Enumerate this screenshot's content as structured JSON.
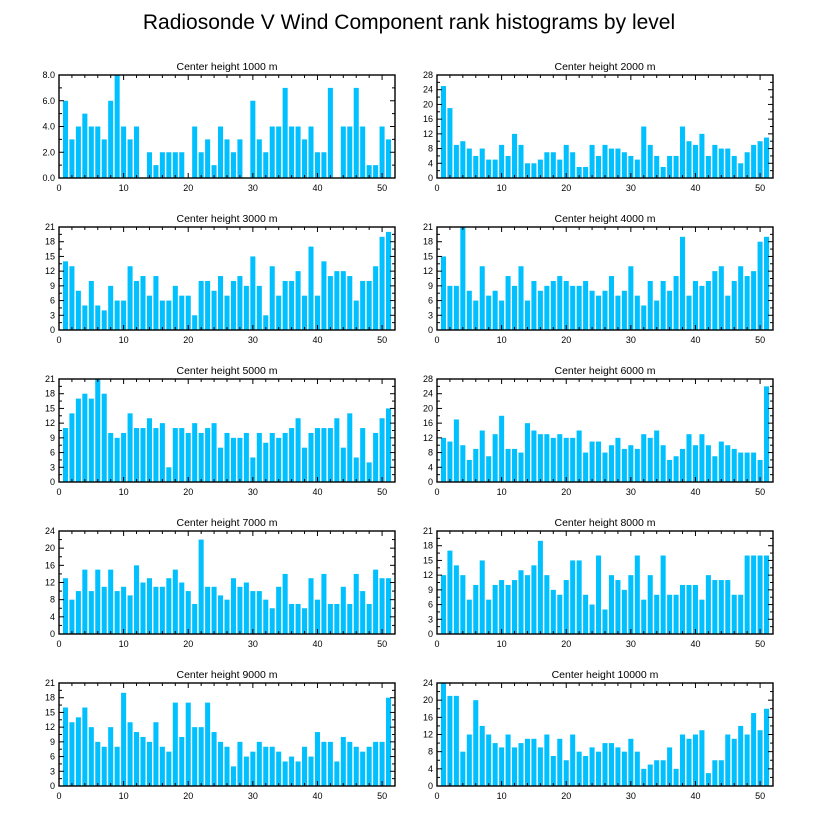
{
  "page_title": "Radiosonde V Wind Component rank histograms by level",
  "colors": {
    "bar": "#00c0ff",
    "axis": "#000000",
    "background": "#ffffff"
  },
  "chart_data": [
    {
      "type": "bar",
      "title": "Center height 1000 m",
      "xlim": [
        0,
        52
      ],
      "ylim": [
        0,
        8
      ],
      "yticks": [
        0,
        2,
        4,
        6,
        8
      ],
      "ytick_labels": [
        "0.0",
        "2.0",
        "4.0",
        "6.0",
        "8.0"
      ],
      "xticks": [
        0,
        10,
        20,
        30,
        40,
        50
      ],
      "xtick_labels": [
        "0",
        "10",
        "20",
        "30",
        "40",
        "50"
      ],
      "values": [
        6,
        3,
        4,
        5,
        4,
        4,
        3,
        6,
        8,
        4,
        3,
        4,
        0,
        2,
        1,
        2,
        2,
        2,
        2,
        0,
        4,
        2,
        3,
        1,
        4,
        3,
        2,
        3,
        0,
        6,
        3,
        2,
        4,
        4,
        7,
        4,
        4,
        3,
        4,
        2,
        2,
        7,
        0,
        4,
        4,
        7,
        4,
        1,
        1,
        4,
        3
      ]
    },
    {
      "type": "bar",
      "title": "Center height 2000 m",
      "xlim": [
        0,
        52
      ],
      "ylim": [
        0,
        28
      ],
      "yticks": [
        0,
        4,
        8,
        12,
        16,
        20,
        24,
        28
      ],
      "ytick_labels": [
        "0",
        "4",
        "8",
        "12",
        "16",
        "20",
        "24",
        "28"
      ],
      "xticks": [
        0,
        10,
        20,
        30,
        40,
        50
      ],
      "xtick_labels": [
        "0",
        "10",
        "20",
        "30",
        "40",
        "50"
      ],
      "values": [
        25,
        19,
        9,
        10,
        8,
        6,
        8,
        5,
        5,
        9,
        6,
        12,
        9,
        4,
        4,
        5,
        7,
        7,
        5,
        9,
        7,
        3,
        3,
        9,
        6,
        9,
        8,
        8,
        7,
        6,
        5,
        14,
        9,
        6,
        3,
        6,
        6,
        14,
        10,
        9,
        12,
        6,
        9,
        8,
        8,
        6,
        4,
        7,
        9,
        10,
        11
      ]
    },
    {
      "type": "bar",
      "title": "Center height 3000 m",
      "xlim": [
        0,
        52
      ],
      "ylim": [
        0,
        21
      ],
      "yticks": [
        0,
        3,
        6,
        9,
        12,
        15,
        18,
        21
      ],
      "ytick_labels": [
        "0",
        "3",
        "6",
        "9",
        "12",
        "15",
        "18",
        "21"
      ],
      "xticks": [
        0,
        10,
        20,
        30,
        40,
        50
      ],
      "xtick_labels": [
        "0",
        "10",
        "20",
        "30",
        "40",
        "50"
      ],
      "values": [
        14,
        13,
        8,
        5,
        10,
        5,
        4,
        9,
        6,
        6,
        13,
        10,
        11,
        7,
        11,
        6,
        6,
        9,
        7,
        7,
        3,
        10,
        10,
        8,
        11,
        7,
        10,
        11,
        9,
        15,
        9,
        3,
        13,
        7,
        10,
        10,
        12,
        7,
        17,
        7,
        14,
        11,
        12,
        12,
        11,
        6,
        10,
        10,
        13,
        19,
        20
      ]
    },
    {
      "type": "bar",
      "title": "Center height 4000 m",
      "xlim": [
        0,
        52
      ],
      "ylim": [
        0,
        21
      ],
      "yticks": [
        0,
        3,
        6,
        9,
        12,
        15,
        18,
        21
      ],
      "ytick_labels": [
        "0",
        "3",
        "6",
        "9",
        "12",
        "15",
        "18",
        "21"
      ],
      "xticks": [
        0,
        10,
        20,
        30,
        40,
        50
      ],
      "xtick_labels": [
        "0",
        "10",
        "20",
        "30",
        "40",
        "50"
      ],
      "values": [
        15,
        9,
        9,
        21,
        8,
        6,
        13,
        7,
        8,
        6,
        11,
        9,
        13,
        6,
        10,
        8,
        9,
        10,
        11,
        10,
        9,
        9,
        10,
        8,
        7,
        8,
        11,
        7,
        8,
        13,
        7,
        5,
        10,
        6,
        10,
        8,
        11,
        19,
        7,
        10,
        9,
        10,
        12,
        13,
        7,
        10,
        13,
        11,
        12,
        18,
        19
      ]
    },
    {
      "type": "bar",
      "title": "Center height 5000 m",
      "xlim": [
        0,
        52
      ],
      "ylim": [
        0,
        21
      ],
      "yticks": [
        0,
        3,
        6,
        9,
        12,
        15,
        18,
        21
      ],
      "ytick_labels": [
        "0",
        "3",
        "6",
        "9",
        "12",
        "15",
        "18",
        "21"
      ],
      "xticks": [
        0,
        10,
        20,
        30,
        40,
        50
      ],
      "xtick_labels": [
        "0",
        "10",
        "20",
        "30",
        "40",
        "50"
      ],
      "values": [
        11,
        14,
        17,
        18,
        17,
        21,
        18,
        10,
        9,
        10,
        14,
        11,
        11,
        13,
        11,
        12,
        3,
        11,
        11,
        10,
        12,
        10,
        11,
        12,
        7,
        10,
        9,
        9,
        10,
        5,
        10,
        8,
        10,
        9,
        10,
        11,
        13,
        7,
        10,
        11,
        11,
        11,
        13,
        7,
        14,
        5,
        11,
        4,
        10,
        13,
        15
      ]
    },
    {
      "type": "bar",
      "title": "Center height 6000 m",
      "xlim": [
        0,
        52
      ],
      "ylim": [
        0,
        28
      ],
      "yticks": [
        0,
        4,
        8,
        12,
        16,
        20,
        24,
        28
      ],
      "ytick_labels": [
        "0",
        "4",
        "8",
        "12",
        "16",
        "20",
        "24",
        "28"
      ],
      "xticks": [
        0,
        10,
        20,
        30,
        40,
        50
      ],
      "xtick_labels": [
        "0",
        "10",
        "20",
        "30",
        "40",
        "50"
      ],
      "values": [
        12,
        11,
        17,
        10,
        6,
        9,
        14,
        7,
        13,
        18,
        9,
        9,
        8,
        16,
        14,
        13,
        13,
        12,
        13,
        12,
        12,
        14,
        8,
        11,
        11,
        8,
        10,
        12,
        9,
        10,
        9,
        13,
        12,
        14,
        10,
        6,
        7,
        9,
        13,
        10,
        13,
        10,
        7,
        11,
        10,
        9,
        8,
        8,
        8,
        6,
        26
      ]
    },
    {
      "type": "bar",
      "title": "Center height 7000 m",
      "xlim": [
        0,
        52
      ],
      "ylim": [
        0,
        24
      ],
      "yticks": [
        0,
        4,
        8,
        12,
        16,
        20,
        24
      ],
      "ytick_labels": [
        "0",
        "4",
        "8",
        "12",
        "16",
        "20",
        "24"
      ],
      "xticks": [
        0,
        10,
        20,
        30,
        40,
        50
      ],
      "xtick_labels": [
        "0",
        "10",
        "20",
        "30",
        "40",
        "50"
      ],
      "values": [
        13,
        8,
        10,
        15,
        10,
        15,
        11,
        15,
        10,
        11,
        9,
        16,
        12,
        13,
        11,
        11,
        13,
        15,
        12,
        10,
        7,
        22,
        11,
        11,
        9,
        8,
        13,
        11,
        12,
        10,
        10,
        8,
        6,
        11,
        14,
        7,
        7,
        6,
        13,
        8,
        14,
        7,
        7,
        11,
        7,
        14,
        10,
        7,
        15,
        13,
        13
      ]
    },
    {
      "type": "bar",
      "title": "Center height 8000 m",
      "xlim": [
        0,
        52
      ],
      "ylim": [
        0,
        21
      ],
      "yticks": [
        0,
        3,
        6,
        9,
        12,
        15,
        18,
        21
      ],
      "ytick_labels": [
        "0",
        "3",
        "6",
        "9",
        "12",
        "15",
        "18",
        "21"
      ],
      "xticks": [
        0,
        10,
        20,
        30,
        40,
        50
      ],
      "xtick_labels": [
        "0",
        "10",
        "20",
        "30",
        "40",
        "50"
      ],
      "values": [
        12,
        17,
        14,
        12,
        7,
        10,
        15,
        7,
        10,
        11,
        10,
        11,
        13,
        12,
        14,
        19,
        12,
        9,
        8,
        11,
        15,
        15,
        8,
        6,
        16,
        5,
        12,
        11,
        9,
        12,
        16,
        7,
        12,
        8,
        16,
        8,
        8,
        10,
        10,
        10,
        7,
        12,
        11,
        11,
        11,
        8,
        8,
        16,
        16,
        16,
        16
      ]
    },
    {
      "type": "bar",
      "title": "Center height 9000 m",
      "xlim": [
        0,
        52
      ],
      "ylim": [
        0,
        21
      ],
      "yticks": [
        0,
        3,
        6,
        9,
        12,
        15,
        18,
        21
      ],
      "ytick_labels": [
        "0",
        "3",
        "6",
        "9",
        "12",
        "15",
        "18",
        "21"
      ],
      "xticks": [
        0,
        10,
        20,
        30,
        40,
        50
      ],
      "xtick_labels": [
        "0",
        "10",
        "20",
        "30",
        "40",
        "50"
      ],
      "values": [
        16,
        13,
        14,
        16,
        12,
        9,
        8,
        12,
        8,
        19,
        13,
        11,
        10,
        9,
        13,
        8,
        7,
        17,
        10,
        17,
        12,
        12,
        17,
        11,
        9,
        8,
        4,
        9,
        6,
        7,
        9,
        8,
        8,
        7,
        5,
        6,
        5,
        8,
        6,
        11,
        9,
        9,
        5,
        10,
        9,
        8,
        7,
        8,
        9,
        9,
        18
      ]
    },
    {
      "type": "bar",
      "title": "Center height 10000 m",
      "xlim": [
        0,
        52
      ],
      "ylim": [
        0,
        24
      ],
      "yticks": [
        0,
        4,
        8,
        12,
        16,
        20,
        24
      ],
      "ytick_labels": [
        "0",
        "4",
        "8",
        "12",
        "16",
        "20",
        "24"
      ],
      "xticks": [
        0,
        10,
        20,
        30,
        40,
        50
      ],
      "xtick_labels": [
        "0",
        "10",
        "20",
        "30",
        "40",
        "50"
      ],
      "values": [
        24,
        21,
        21,
        8,
        12,
        20,
        14,
        12,
        10,
        9,
        12,
        9,
        10,
        11,
        11,
        9,
        12,
        7,
        11,
        6,
        12,
        8,
        7,
        9,
        8,
        10,
        10,
        9,
        8,
        11,
        8,
        4,
        5,
        6,
        6,
        9,
        4,
        12,
        11,
        12,
        13,
        3,
        6,
        6,
        12,
        11,
        14,
        12,
        17,
        13,
        18
      ]
    }
  ]
}
